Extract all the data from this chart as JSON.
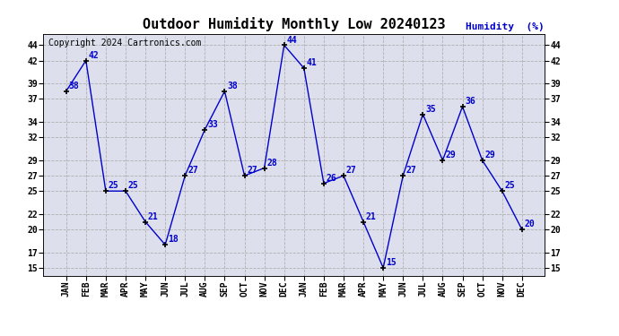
{
  "title": "Outdoor Humidity Monthly Low 20240123",
  "copyright": "Copyright 2024 Cartronics.com",
  "ylabel_right": "Humidity  (%)",
  "months": [
    "JAN",
    "FEB",
    "MAR",
    "APR",
    "MAY",
    "JUN",
    "JUL",
    "AUG",
    "SEP",
    "OCT",
    "NOV",
    "DEC",
    "JAN",
    "FEB",
    "MAR",
    "APR",
    "MAY",
    "JUN",
    "JUL",
    "AUG",
    "SEP",
    "OCT",
    "NOV",
    "DEC"
  ],
  "values": [
    38,
    42,
    25,
    25,
    21,
    18,
    27,
    33,
    38,
    27,
    28,
    44,
    41,
    26,
    27,
    21,
    15,
    27,
    35,
    29,
    36,
    29,
    25,
    20
  ],
  "line_color": "#0000cc",
  "marker_color": "#000000",
  "label_color": "#0000cc",
  "grid_color": "#b0b0b0",
  "background_color": "#dde0ec",
  "title_color": "#000000",
  "copyright_color": "#000000",
  "ylabel_right_color": "#0000cc",
  "ylim": [
    14,
    45.5
  ],
  "yticks": [
    15,
    17,
    20,
    22,
    25,
    27,
    29,
    32,
    34,
    37,
    39,
    42,
    44
  ],
  "title_fontsize": 11,
  "label_fontsize": 7,
  "tick_fontsize": 7,
  "copyright_fontsize": 7
}
